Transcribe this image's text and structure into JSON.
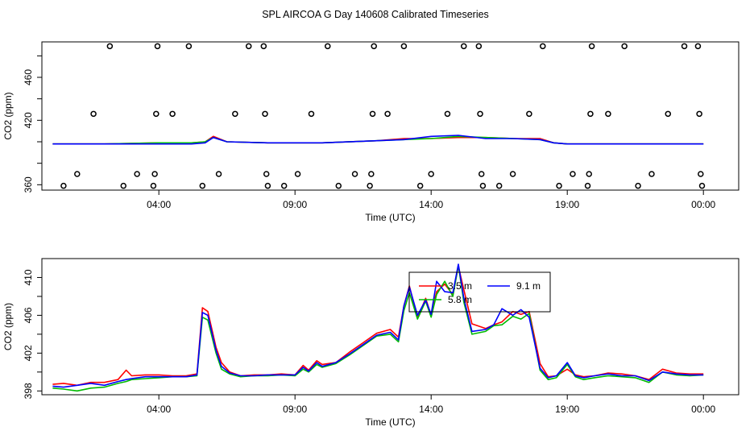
{
  "title": "SPL AIRCOA G  Day 140608  Calibrated Timeseries",
  "chart_data": [
    {
      "type": "line",
      "ylabel": "CO2 (ppm)",
      "xlabel": "Time (UTC)",
      "xlim": [
        0.0,
        25.0
      ],
      "ylim": [
        355,
        493
      ],
      "yticks": [
        360,
        380,
        400,
        420,
        440,
        460,
        480
      ],
      "ytick_labels": [
        "360",
        "",
        "",
        "420",
        "",
        "460",
        ""
      ],
      "xticks": [
        4,
        9,
        14,
        19,
        24
      ],
      "xtick_labels": [
        "04:00",
        "09:00",
        "14:00",
        "19:00",
        "00:00"
      ],
      "series": [
        {
          "name": "3.5 m",
          "color": "#ff0000",
          "x": [
            0.1,
            2,
            4,
            5.2,
            5.7,
            6,
            6.5,
            8,
            10,
            12,
            13,
            14,
            15,
            16,
            17,
            18,
            18.5,
            19,
            20,
            22,
            24
          ],
          "y": [
            398,
            398,
            399,
            399,
            400,
            405,
            400,
            399,
            399,
            401,
            403,
            403,
            404,
            404,
            403,
            403,
            399,
            398,
            398,
            398,
            398
          ]
        },
        {
          "name": "5.8 m",
          "color": "#00cc00",
          "x": [
            0.1,
            2,
            4,
            5.2,
            5.7,
            6,
            6.5,
            8,
            10,
            12,
            13,
            14,
            15,
            16,
            17,
            18,
            18.5,
            19,
            20,
            22,
            24
          ],
          "y": [
            398,
            398,
            399,
            399,
            400,
            404,
            400,
            399,
            399,
            401,
            402,
            403,
            405,
            404,
            403,
            402,
            399,
            398,
            398,
            398,
            398
          ]
        },
        {
          "name": "9.1 m",
          "color": "#0000ff",
          "x": [
            0.1,
            2,
            4,
            5.2,
            5.7,
            6,
            6.5,
            8,
            10,
            12,
            13,
            14,
            15,
            16,
            17,
            18,
            18.5,
            19,
            20,
            22,
            24
          ],
          "y": [
            398,
            398,
            398,
            398,
            399,
            404,
            400,
            399,
            399,
            401,
            402,
            405,
            406,
            403,
            403,
            402,
            399,
            398,
            398,
            398,
            398
          ]
        }
      ],
      "flags": [
        {
          "x": 0.5,
          "y": 359
        },
        {
          "x": 1.0,
          "y": 370
        },
        {
          "x": 1.6,
          "y": 426
        },
        {
          "x": 2.2,
          "y": 489
        },
        {
          "x": 2.7,
          "y": 359
        },
        {
          "x": 3.2,
          "y": 370
        },
        {
          "x": 3.8,
          "y": 359
        },
        {
          "x": 3.85,
          "y": 370
        },
        {
          "x": 3.9,
          "y": 426
        },
        {
          "x": 3.95,
          "y": 489
        },
        {
          "x": 4.5,
          "y": 426
        },
        {
          "x": 5.1,
          "y": 489
        },
        {
          "x": 5.6,
          "y": 359
        },
        {
          "x": 6.2,
          "y": 370
        },
        {
          "x": 6.8,
          "y": 426
        },
        {
          "x": 7.3,
          "y": 489
        },
        {
          "x": 7.85,
          "y": 489
        },
        {
          "x": 7.9,
          "y": 426
        },
        {
          "x": 7.95,
          "y": 370
        },
        {
          "x": 8.0,
          "y": 359
        },
        {
          "x": 8.6,
          "y": 359
        },
        {
          "x": 9.1,
          "y": 370
        },
        {
          "x": 9.6,
          "y": 426
        },
        {
          "x": 10.2,
          "y": 489
        },
        {
          "x": 10.6,
          "y": 359
        },
        {
          "x": 11.2,
          "y": 370
        },
        {
          "x": 11.75,
          "y": 359
        },
        {
          "x": 11.8,
          "y": 370
        },
        {
          "x": 11.85,
          "y": 426
        },
        {
          "x": 11.9,
          "y": 489
        },
        {
          "x": 12.4,
          "y": 426
        },
        {
          "x": 13.0,
          "y": 489
        },
        {
          "x": 13.6,
          "y": 359
        },
        {
          "x": 14.0,
          "y": 370
        },
        {
          "x": 14.6,
          "y": 426
        },
        {
          "x": 15.2,
          "y": 489
        },
        {
          "x": 15.75,
          "y": 489
        },
        {
          "x": 15.8,
          "y": 426
        },
        {
          "x": 15.85,
          "y": 370
        },
        {
          "x": 15.9,
          "y": 359
        },
        {
          "x": 16.5,
          "y": 359
        },
        {
          "x": 17.0,
          "y": 370
        },
        {
          "x": 17.6,
          "y": 426
        },
        {
          "x": 18.1,
          "y": 489
        },
        {
          "x": 18.7,
          "y": 359
        },
        {
          "x": 19.2,
          "y": 370
        },
        {
          "x": 19.75,
          "y": 359
        },
        {
          "x": 19.8,
          "y": 370
        },
        {
          "x": 19.85,
          "y": 426
        },
        {
          "x": 19.9,
          "y": 489
        },
        {
          "x": 20.5,
          "y": 426
        },
        {
          "x": 21.1,
          "y": 489
        },
        {
          "x": 21.6,
          "y": 359
        },
        {
          "x": 22.1,
          "y": 370
        },
        {
          "x": 22.7,
          "y": 426
        },
        {
          "x": 23.3,
          "y": 489
        },
        {
          "x": 23.8,
          "y": 489
        },
        {
          "x": 23.85,
          "y": 426
        },
        {
          "x": 23.9,
          "y": 370
        },
        {
          "x": 23.95,
          "y": 359
        }
      ]
    },
    {
      "type": "line",
      "ylabel": "CO2 (ppm)",
      "xlabel": "Time (UTC)",
      "xlim": [
        0.0,
        25.0
      ],
      "ylim": [
        397.6,
        412.0
      ],
      "yticks": [
        398,
        400,
        402,
        404,
        406,
        408,
        410
      ],
      "ytick_labels": [
        "398",
        "",
        "402",
        "",
        "406",
        "",
        "410"
      ],
      "xticks": [
        4,
        9,
        14,
        19,
        24
      ],
      "xtick_labels": [
        "04:00",
        "09:00",
        "14:00",
        "19:00",
        "00:00"
      ],
      "legend": {
        "position": "top-center",
        "entries": [
          "3.5 m",
          "5.8 m",
          "9.1 m"
        ]
      },
      "series": [
        {
          "name": "3.5 m",
          "color": "#ff0000",
          "x": [
            0.1,
            0.5,
            1,
            1.5,
            2,
            2.5,
            2.8,
            3,
            3.5,
            4,
            4.5,
            5,
            5.4,
            5.6,
            5.8,
            6.1,
            6.3,
            6.6,
            7,
            7.5,
            8,
            8.5,
            9,
            9.3,
            9.5,
            9.8,
            10,
            10.5,
            11,
            11.5,
            12,
            12.5,
            12.8,
            13.0,
            13.2,
            13.5,
            13.8,
            14.0,
            14.2,
            14.5,
            14.8,
            15.0,
            15.2,
            15.5,
            16,
            16.3,
            16.6,
            17,
            17.3,
            17.6,
            18,
            18.3,
            18.6,
            19,
            19.3,
            19.6,
            20,
            20.5,
            21,
            21.5,
            22,
            22.5,
            23,
            23.5,
            24
          ],
          "y": [
            398.7,
            398.8,
            398.6,
            398.9,
            398.9,
            399.2,
            400.2,
            399.6,
            399.7,
            399.7,
            399.6,
            399.6,
            399.8,
            406.8,
            406.4,
            402.6,
            401.0,
            400.0,
            399.6,
            399.7,
            399.7,
            399.8,
            399.7,
            400.7,
            400.2,
            401.2,
            400.8,
            401.0,
            402.1,
            403.1,
            404.1,
            404.5,
            403.7,
            407.0,
            409.1,
            405.7,
            407.8,
            406.0,
            408.5,
            409.3,
            408.2,
            411.2,
            408.7,
            405.1,
            404.6,
            405.0,
            405.3,
            406.4,
            406.1,
            406.4,
            400.9,
            399.5,
            399.6,
            400.3,
            399.7,
            399.5,
            399.6,
            399.9,
            399.8,
            399.6,
            399.2,
            400.3,
            399.9,
            399.8,
            399.8
          ]
        },
        {
          "name": "5.8 m",
          "color": "#00bb00",
          "x": [
            0.1,
            0.5,
            1,
            1.5,
            2,
            2.5,
            2.8,
            3,
            3.5,
            4,
            4.5,
            5,
            5.4,
            5.6,
            5.8,
            6.1,
            6.3,
            6.6,
            7,
            7.5,
            8,
            8.5,
            9,
            9.3,
            9.5,
            9.8,
            10,
            10.5,
            11,
            11.5,
            12,
            12.5,
            12.8,
            13.0,
            13.2,
            13.5,
            13.8,
            14.0,
            14.2,
            14.5,
            14.8,
            15.0,
            15.2,
            15.5,
            16,
            16.3,
            16.6,
            17,
            17.3,
            17.6,
            18,
            18.3,
            18.6,
            19,
            19.3,
            19.6,
            20,
            20.5,
            21,
            21.5,
            22,
            22.5,
            23,
            23.5,
            24
          ],
          "y": [
            398.3,
            398.2,
            398.0,
            398.3,
            398.4,
            398.8,
            399.0,
            399.2,
            399.3,
            399.4,
            399.5,
            399.5,
            399.6,
            405.8,
            405.5,
            402.0,
            400.3,
            399.8,
            399.5,
            399.6,
            399.6,
            399.7,
            399.6,
            400.3,
            400.0,
            400.8,
            400.5,
            400.9,
            401.8,
            402.8,
            403.8,
            404.0,
            403.2,
            406.5,
            408.4,
            405.6,
            407.5,
            405.8,
            408.2,
            409.6,
            408.0,
            411.3,
            407.4,
            404.0,
            404.3,
            404.9,
            405.0,
            405.9,
            405.6,
            406.2,
            400.2,
            399.2,
            399.4,
            400.8,
            399.5,
            399.2,
            399.4,
            399.6,
            399.5,
            399.4,
            398.9,
            400.0,
            399.7,
            399.6,
            399.7
          ]
        },
        {
          "name": "9.1 m",
          "color": "#0000ff",
          "x": [
            0.1,
            0.5,
            1,
            1.5,
            2,
            2.5,
            2.8,
            3,
            3.5,
            4,
            4.5,
            5,
            5.4,
            5.6,
            5.8,
            6.1,
            6.3,
            6.6,
            7,
            7.5,
            8,
            8.5,
            9,
            9.3,
            9.5,
            9.8,
            10,
            10.5,
            11,
            11.5,
            12,
            12.5,
            12.8,
            13.0,
            13.2,
            13.5,
            13.8,
            14.0,
            14.2,
            14.5,
            14.8,
            15.0,
            15.2,
            15.5,
            16,
            16.3,
            16.6,
            17,
            17.3,
            17.6,
            18,
            18.3,
            18.6,
            19,
            19.3,
            19.6,
            20,
            20.5,
            21,
            21.5,
            22,
            22.5,
            23,
            23.5,
            24
          ],
          "y": [
            398.5,
            398.4,
            398.6,
            398.8,
            398.6,
            399.0,
            399.2,
            399.3,
            399.5,
            399.5,
            399.5,
            399.5,
            399.7,
            406.3,
            406.0,
            402.3,
            400.6,
            399.9,
            399.6,
            399.6,
            399.7,
            399.7,
            399.7,
            400.5,
            400.1,
            401.0,
            400.6,
            401.0,
            401.9,
            402.9,
            403.9,
            404.2,
            403.4,
            407.0,
            409.0,
            406.0,
            407.6,
            406.1,
            409.6,
            408.5,
            408.4,
            411.4,
            407.8,
            404.3,
            404.5,
            405.0,
            406.7,
            406.0,
            406.6,
            405.8,
            400.4,
            399.4,
            399.6,
            401.0,
            399.6,
            399.4,
            399.6,
            399.8,
            399.6,
            399.6,
            399.1,
            400.0,
            399.8,
            399.7,
            399.7
          ]
        }
      ]
    }
  ]
}
